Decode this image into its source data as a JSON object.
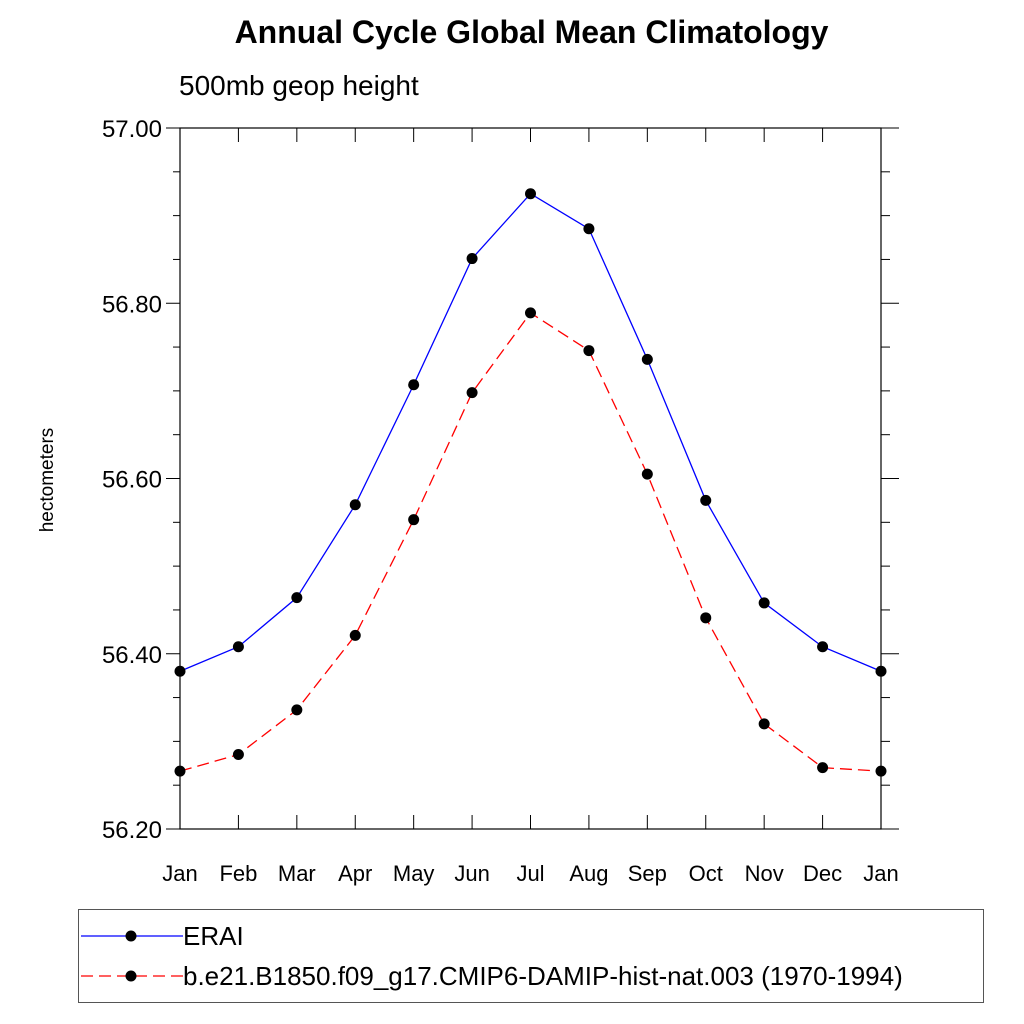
{
  "chart_data": {
    "type": "line",
    "title": "Annual Cycle Global Mean Climatology",
    "subtitle": "500mb geop height",
    "ylabel": "hectometers",
    "xlabel": "",
    "categories": [
      "Jan",
      "Feb",
      "Mar",
      "Apr",
      "May",
      "Jun",
      "Jul",
      "Aug",
      "Sep",
      "Oct",
      "Nov",
      "Dec",
      "Jan"
    ],
    "ylim": [
      56.2,
      57.0
    ],
    "yticks": [
      "56.20",
      "56.40",
      "56.60",
      "56.80",
      "57.00"
    ],
    "grid": false,
    "legend_placement": "bottom",
    "series": [
      {
        "name": "ERAI",
        "color": "#0000ff",
        "dash": "solid",
        "marker": "filled-circle",
        "values": [
          56.38,
          56.408,
          56.464,
          56.57,
          56.707,
          56.851,
          56.925,
          56.885,
          56.736,
          56.575,
          56.458,
          56.408,
          56.38
        ]
      },
      {
        "name": "b.e21.B1850.f09_g17.CMIP6-DAMIP-hist-nat.003 (1970-1994)",
        "color": "#ff0000",
        "dash": "dashed",
        "marker": "filled-circle",
        "values": [
          56.266,
          56.285,
          56.336,
          56.421,
          56.553,
          56.698,
          56.789,
          56.746,
          56.605,
          56.441,
          56.32,
          56.27,
          56.266
        ]
      }
    ]
  }
}
